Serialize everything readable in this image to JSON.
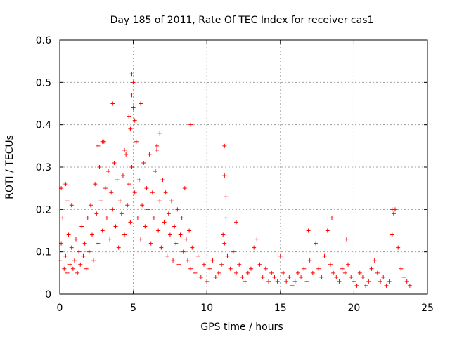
{
  "chart_data": {
    "type": "scatter",
    "title": "Day 185 of 2011, Rate Of TEC Index for receiver cas1",
    "xlabel": "GPS time / hours",
    "ylabel": "ROTI / TECUs",
    "xlim": [
      0,
      25
    ],
    "ylim": [
      0,
      0.6
    ],
    "xticks": [
      0,
      5,
      10,
      15,
      20,
      25
    ],
    "yticks": [
      0,
      0.1,
      0.2,
      0.3,
      0.4,
      0.5,
      0.6
    ],
    "xtick_labels": [
      "0",
      "5",
      "10",
      "15",
      "20",
      "25"
    ],
    "ytick_labels": [
      "0",
      "0.1",
      "0.2",
      "0.3",
      "0.4",
      "0.5",
      "0.6"
    ],
    "grid": true,
    "marker": "+",
    "color": "#ff0000",
    "series": [
      {
        "name": "ROTI",
        "x": [
          0.0,
          0.1,
          0.2,
          0.3,
          0.4,
          0.5,
          0.6,
          0.7,
          0.8,
          0.9,
          1.0,
          1.1,
          1.2,
          1.3,
          1.4,
          1.5,
          1.6,
          1.7,
          1.8,
          1.9,
          2.0,
          2.1,
          2.2,
          2.3,
          2.4,
          2.5,
          2.6,
          2.7,
          2.8,
          2.9,
          3.0,
          3.1,
          3.2,
          3.3,
          3.4,
          3.5,
          3.6,
          3.7,
          3.8,
          3.9,
          4.0,
          4.1,
          4.2,
          4.3,
          4.4,
          4.5,
          4.6,
          4.7,
          4.8,
          4.9,
          5.0,
          5.1,
          5.2,
          5.3,
          5.4,
          5.5,
          5.6,
          5.7,
          5.8,
          5.9,
          6.0,
          6.1,
          6.2,
          6.3,
          6.4,
          6.5,
          6.6,
          6.7,
          6.8,
          6.9,
          7.0,
          7.1,
          7.2,
          7.3,
          7.4,
          7.5,
          7.6,
          7.7,
          7.8,
          7.9,
          8.0,
          8.1,
          8.2,
          8.3,
          8.4,
          8.5,
          8.6,
          8.7,
          8.8,
          8.9,
          9.0,
          9.2,
          9.4,
          9.6,
          9.8,
          10.0,
          10.2,
          10.4,
          10.6,
          10.8,
          11.0,
          11.1,
          11.2,
          11.3,
          11.4,
          11.6,
          11.8,
          12.0,
          12.2,
          12.4,
          12.6,
          12.8,
          13.0,
          13.2,
          13.4,
          13.6,
          13.8,
          14.0,
          14.2,
          14.4,
          14.6,
          14.8,
          15.0,
          15.2,
          15.4,
          15.6,
          15.8,
          16.0,
          16.2,
          16.4,
          16.6,
          16.8,
          17.0,
          17.2,
          17.4,
          17.6,
          17.8,
          18.0,
          18.2,
          18.4,
          18.6,
          18.8,
          19.0,
          19.2,
          19.4,
          19.6,
          19.8,
          20.0,
          20.2,
          20.4,
          20.6,
          20.8,
          21.0,
          21.2,
          21.4,
          21.6,
          21.8,
          22.0,
          22.2,
          22.4,
          22.6,
          22.8,
          23.0,
          23.2,
          23.4,
          23.6,
          23.8,
          3.6,
          4.9,
          5.0,
          4.9,
          5.5,
          5.1,
          6.8,
          8.9,
          11.2,
          11.2,
          11.3,
          0.1,
          0.5,
          0.4,
          0.8,
          12.0,
          18.5,
          22.6,
          22.7,
          16.9,
          19.5,
          2.6,
          2.9,
          4.4,
          6.6,
          4.7,
          4.8
        ],
        "y": [
          0.08,
          0.12,
          0.18,
          0.06,
          0.09,
          0.05,
          0.14,
          0.07,
          0.11,
          0.06,
          0.08,
          0.13,
          0.05,
          0.1,
          0.07,
          0.16,
          0.09,
          0.12,
          0.06,
          0.18,
          0.1,
          0.21,
          0.14,
          0.08,
          0.26,
          0.19,
          0.12,
          0.3,
          0.22,
          0.15,
          0.36,
          0.25,
          0.18,
          0.29,
          0.13,
          0.24,
          0.2,
          0.31,
          0.16,
          0.27,
          0.11,
          0.22,
          0.19,
          0.28,
          0.14,
          0.33,
          0.21,
          0.26,
          0.17,
          0.3,
          0.44,
          0.24,
          0.36,
          0.18,
          0.27,
          0.13,
          0.21,
          0.31,
          0.16,
          0.25,
          0.2,
          0.33,
          0.12,
          0.24,
          0.18,
          0.29,
          0.35,
          0.15,
          0.22,
          0.11,
          0.27,
          0.17,
          0.24,
          0.09,
          0.19,
          0.14,
          0.22,
          0.08,
          0.16,
          0.12,
          0.2,
          0.07,
          0.14,
          0.18,
          0.1,
          0.25,
          0.13,
          0.08,
          0.15,
          0.06,
          0.11,
          0.05,
          0.09,
          0.04,
          0.07,
          0.03,
          0.06,
          0.08,
          0.04,
          0.05,
          0.07,
          0.14,
          0.12,
          0.18,
          0.09,
          0.06,
          0.1,
          0.05,
          0.07,
          0.04,
          0.03,
          0.05,
          0.06,
          0.11,
          0.13,
          0.07,
          0.04,
          0.06,
          0.03,
          0.05,
          0.04,
          0.03,
          0.09,
          0.05,
          0.03,
          0.04,
          0.02,
          0.03,
          0.05,
          0.04,
          0.06,
          0.03,
          0.08,
          0.05,
          0.12,
          0.06,
          0.04,
          0.09,
          0.15,
          0.07,
          0.05,
          0.04,
          0.03,
          0.06,
          0.05,
          0.07,
          0.04,
          0.03,
          0.02,
          0.05,
          0.04,
          0.02,
          0.03,
          0.06,
          0.08,
          0.05,
          0.03,
          0.04,
          0.02,
          0.03,
          0.14,
          0.2,
          0.11,
          0.06,
          0.04,
          0.03,
          0.02,
          0.45,
          0.52,
          0.5,
          0.47,
          0.45,
          0.41,
          0.38,
          0.4,
          0.35,
          0.28,
          0.23,
          0.25,
          0.22,
          0.26,
          0.21,
          0.17,
          0.18,
          0.2,
          0.19,
          0.15,
          0.13,
          0.35,
          0.36,
          0.34,
          0.34,
          0.42,
          0.39
        ]
      }
    ]
  }
}
